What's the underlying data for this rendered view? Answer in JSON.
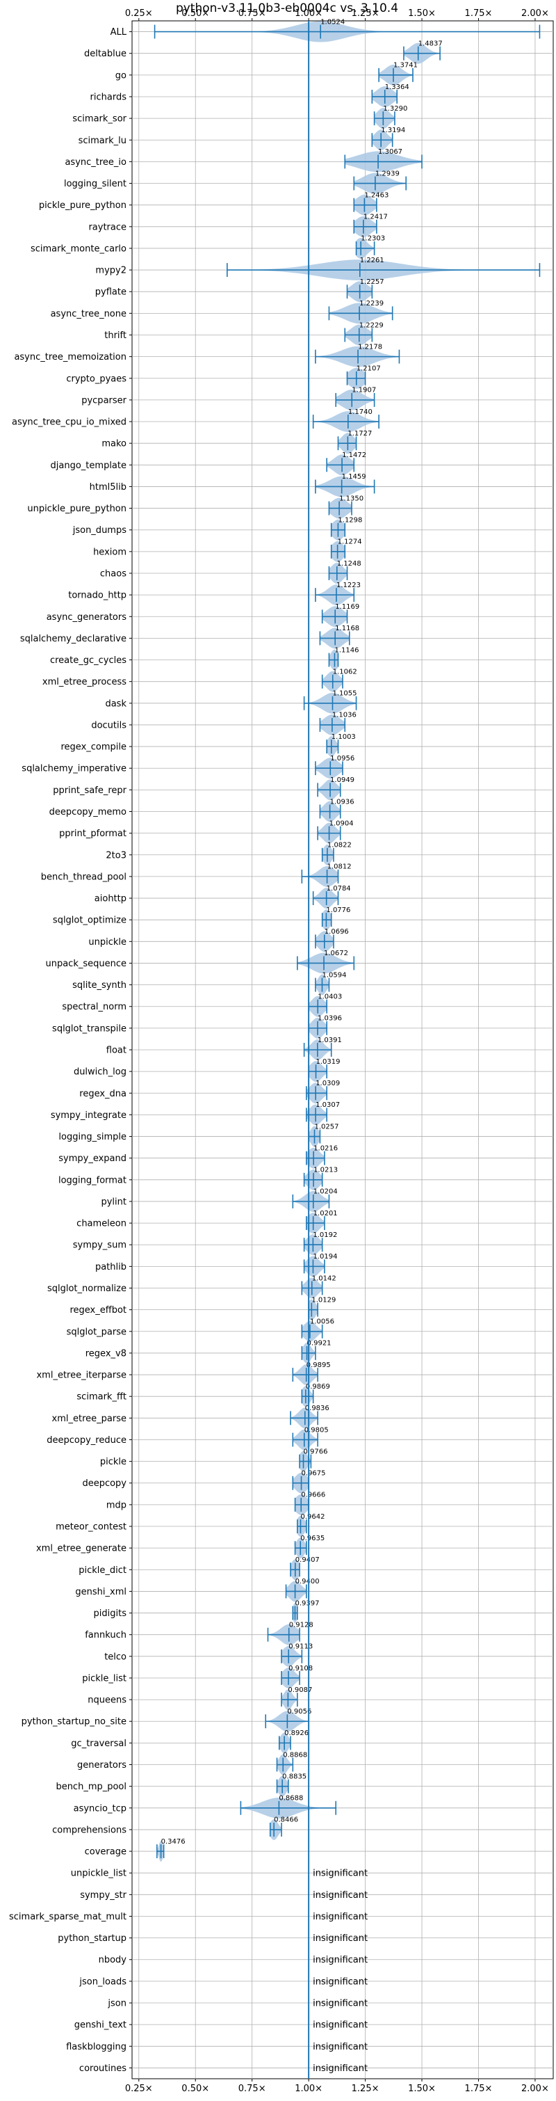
{
  "chart_data": {
    "type": "violin",
    "title": "python-v3.11.0b3-eb0004c vs. 3.10.4",
    "xlabel": "",
    "ylabel": "",
    "xlim": [
      0.22,
      2.08
    ],
    "xticks": [
      0.25,
      0.5,
      0.75,
      1.0,
      1.25,
      1.5,
      1.75,
      2.0
    ],
    "xtick_labels": [
      "0.25×",
      "0.50×",
      "0.75×",
      "1.00×",
      "1.25×",
      "1.50×",
      "1.75×",
      "2.00×"
    ],
    "reference_line": 1.0,
    "grid": true,
    "colors": {
      "violin": "#aac8e4",
      "whisker": "#1f77b4",
      "reference": "#1f77b4",
      "grid": "#b0b0b0"
    },
    "insignificant_text": "insignificant",
    "benchmarks": [
      {
        "name": "ALL",
        "label": "1.0524",
        "median": 1.0524,
        "min": 0.32,
        "max": 2.02,
        "spread": 0.12
      },
      {
        "name": "deltablue",
        "label": "1.4837",
        "median": 1.4837,
        "min": 1.42,
        "max": 1.58,
        "spread": 0.04
      },
      {
        "name": "go",
        "label": "1.3741",
        "median": 1.3741,
        "min": 1.31,
        "max": 1.46,
        "spread": 0.04
      },
      {
        "name": "richards",
        "label": "1.3364",
        "median": 1.3364,
        "min": 1.28,
        "max": 1.39,
        "spread": 0.04
      },
      {
        "name": "scimark_sor",
        "label": "1.3290",
        "median": 1.329,
        "min": 1.29,
        "max": 1.38,
        "spread": 0.03
      },
      {
        "name": "scimark_lu",
        "label": "1.3194",
        "median": 1.3194,
        "min": 1.28,
        "max": 1.37,
        "spread": 0.03
      },
      {
        "name": "async_tree_io",
        "label": "1.3067",
        "median": 1.3067,
        "min": 1.16,
        "max": 1.5,
        "spread": 0.1
      },
      {
        "name": "logging_silent",
        "label": "1.2939",
        "median": 1.2939,
        "min": 1.2,
        "max": 1.43,
        "spread": 0.06
      },
      {
        "name": "pickle_pure_python",
        "label": "1.2463",
        "median": 1.2463,
        "min": 1.2,
        "max": 1.3,
        "spread": 0.04
      },
      {
        "name": "raytrace",
        "label": "1.2417",
        "median": 1.2417,
        "min": 1.2,
        "max": 1.3,
        "spread": 0.04
      },
      {
        "name": "scimark_monte_carlo",
        "label": "1.2303",
        "median": 1.2303,
        "min": 1.21,
        "max": 1.29,
        "spread": 0.03
      },
      {
        "name": "mypy2",
        "label": "1.2261",
        "median": 1.2261,
        "min": 0.64,
        "max": 2.02,
        "spread": 0.2
      },
      {
        "name": "pyflate",
        "label": "1.2257",
        "median": 1.2257,
        "min": 1.17,
        "max": 1.28,
        "spread": 0.04
      },
      {
        "name": "async_tree_none",
        "label": "1.2239",
        "median": 1.2239,
        "min": 1.09,
        "max": 1.37,
        "spread": 0.07
      },
      {
        "name": "thrift",
        "label": "1.2229",
        "median": 1.2229,
        "min": 1.16,
        "max": 1.28,
        "spread": 0.04
      },
      {
        "name": "async_tree_memoization",
        "label": "1.2178",
        "median": 1.2178,
        "min": 1.03,
        "max": 1.4,
        "spread": 0.08
      },
      {
        "name": "crypto_pyaes",
        "label": "1.2107",
        "median": 1.2107,
        "min": 1.17,
        "max": 1.25,
        "spread": 0.04
      },
      {
        "name": "pycparser",
        "label": "1.1907",
        "median": 1.1907,
        "min": 1.12,
        "max": 1.29,
        "spread": 0.05
      },
      {
        "name": "async_tree_cpu_io_mixed",
        "label": "1.1740",
        "median": 1.174,
        "min": 1.02,
        "max": 1.31,
        "spread": 0.06
      },
      {
        "name": "mako",
        "label": "1.1727",
        "median": 1.1727,
        "min": 1.13,
        "max": 1.21,
        "spread": 0.03
      },
      {
        "name": "django_template",
        "label": "1.1472",
        "median": 1.1472,
        "min": 1.08,
        "max": 1.2,
        "spread": 0.04
      },
      {
        "name": "html5lib",
        "label": "1.1459",
        "median": 1.1459,
        "min": 1.03,
        "max": 1.29,
        "spread": 0.06
      },
      {
        "name": "unpickle_pure_python",
        "label": "1.1350",
        "median": 1.135,
        "min": 1.09,
        "max": 1.19,
        "spread": 0.04
      },
      {
        "name": "json_dumps",
        "label": "1.1298",
        "median": 1.1298,
        "min": 1.1,
        "max": 1.16,
        "spread": 0.03
      },
      {
        "name": "hexiom",
        "label": "1.1274",
        "median": 1.1274,
        "min": 1.1,
        "max": 1.16,
        "spread": 0.03
      },
      {
        "name": "chaos",
        "label": "1.1248",
        "median": 1.1248,
        "min": 1.09,
        "max": 1.17,
        "spread": 0.03
      },
      {
        "name": "tornado_http",
        "label": "1.1223",
        "median": 1.1223,
        "min": 1.03,
        "max": 1.2,
        "spread": 0.04
      },
      {
        "name": "async_generators",
        "label": "1.1169",
        "median": 1.1169,
        "min": 1.06,
        "max": 1.17,
        "spread": 0.04
      },
      {
        "name": "sqlalchemy_declarative",
        "label": "1.1168",
        "median": 1.1168,
        "min": 1.05,
        "max": 1.18,
        "spread": 0.04
      },
      {
        "name": "create_gc_cycles",
        "label": "1.1146",
        "median": 1.1146,
        "min": 1.09,
        "max": 1.13,
        "spread": 0.02
      },
      {
        "name": "xml_etree_process",
        "label": "1.1062",
        "median": 1.1062,
        "min": 1.06,
        "max": 1.15,
        "spread": 0.03
      },
      {
        "name": "dask",
        "label": "1.1055",
        "median": 1.1055,
        "min": 0.98,
        "max": 1.21,
        "spread": 0.05
      },
      {
        "name": "docutils",
        "label": "1.1036",
        "median": 1.1036,
        "min": 1.05,
        "max": 1.16,
        "spread": 0.04
      },
      {
        "name": "regex_compile",
        "label": "1.1003",
        "median": 1.1003,
        "min": 1.08,
        "max": 1.13,
        "spread": 0.02
      },
      {
        "name": "sqlalchemy_imperative",
        "label": "1.0956",
        "median": 1.0956,
        "min": 1.03,
        "max": 1.15,
        "spread": 0.04
      },
      {
        "name": "pprint_safe_repr",
        "label": "1.0949",
        "median": 1.0949,
        "min": 1.04,
        "max": 1.14,
        "spread": 0.03
      },
      {
        "name": "deepcopy_memo",
        "label": "1.0936",
        "median": 1.0936,
        "min": 1.05,
        "max": 1.14,
        "spread": 0.03
      },
      {
        "name": "pprint_pformat",
        "label": "1.0904",
        "median": 1.0904,
        "min": 1.04,
        "max": 1.14,
        "spread": 0.03
      },
      {
        "name": "2to3",
        "label": "1.0822",
        "median": 1.0822,
        "min": 1.06,
        "max": 1.11,
        "spread": 0.02
      },
      {
        "name": "bench_thread_pool",
        "label": "1.0812",
        "median": 1.0812,
        "min": 0.97,
        "max": 1.13,
        "spread": 0.04
      },
      {
        "name": "aiohttp",
        "label": "1.0784",
        "median": 1.0784,
        "min": 1.02,
        "max": 1.13,
        "spread": 0.03
      },
      {
        "name": "sqlglot_optimize",
        "label": "1.0776",
        "median": 1.0776,
        "min": 1.06,
        "max": 1.1,
        "spread": 0.02
      },
      {
        "name": "unpickle",
        "label": "1.0696",
        "median": 1.0696,
        "min": 1.03,
        "max": 1.11,
        "spread": 0.03
      },
      {
        "name": "unpack_sequence",
        "label": "1.0672",
        "median": 1.0672,
        "min": 0.95,
        "max": 1.2,
        "spread": 0.06
      },
      {
        "name": "sqlite_synth",
        "label": "1.0594",
        "median": 1.0594,
        "min": 1.03,
        "max": 1.09,
        "spread": 0.02
      },
      {
        "name": "spectral_norm",
        "label": "1.0403",
        "median": 1.0403,
        "min": 1.0,
        "max": 1.08,
        "spread": 0.03
      },
      {
        "name": "sqlglot_transpile",
        "label": "1.0396",
        "median": 1.0396,
        "min": 1.0,
        "max": 1.08,
        "spread": 0.03
      },
      {
        "name": "float",
        "label": "1.0391",
        "median": 1.0391,
        "min": 0.98,
        "max": 1.1,
        "spread": 0.03
      },
      {
        "name": "dulwich_log",
        "label": "1.0319",
        "median": 1.0319,
        "min": 1.0,
        "max": 1.08,
        "spread": 0.03
      },
      {
        "name": "regex_dna",
        "label": "1.0309",
        "median": 1.0309,
        "min": 0.99,
        "max": 1.08,
        "spread": 0.03
      },
      {
        "name": "sympy_integrate",
        "label": "1.0307",
        "median": 1.0307,
        "min": 0.99,
        "max": 1.08,
        "spread": 0.03
      },
      {
        "name": "logging_simple",
        "label": "1.0257",
        "median": 1.0257,
        "min": 1.0,
        "max": 1.05,
        "spread": 0.02
      },
      {
        "name": "sympy_expand",
        "label": "1.0216",
        "median": 1.0216,
        "min": 0.99,
        "max": 1.07,
        "spread": 0.03
      },
      {
        "name": "logging_format",
        "label": "1.0213",
        "median": 1.0213,
        "min": 0.98,
        "max": 1.06,
        "spread": 0.03
      },
      {
        "name": "pylint",
        "label": "1.0204",
        "median": 1.0204,
        "min": 0.93,
        "max": 1.09,
        "spread": 0.04
      },
      {
        "name": "chameleon",
        "label": "1.0201",
        "median": 1.0201,
        "min": 0.99,
        "max": 1.07,
        "spread": 0.03
      },
      {
        "name": "sympy_sum",
        "label": "1.0192",
        "median": 1.0192,
        "min": 0.98,
        "max": 1.06,
        "spread": 0.03
      },
      {
        "name": "pathlib",
        "label": "1.0194",
        "median": 1.0194,
        "min": 0.98,
        "max": 1.07,
        "spread": 0.03
      },
      {
        "name": "sqlglot_normalize",
        "label": "1.0142",
        "median": 1.0142,
        "min": 0.97,
        "max": 1.06,
        "spread": 0.03
      },
      {
        "name": "regex_effbot",
        "label": "1.0129",
        "median": 1.0129,
        "min": 1.0,
        "max": 1.04,
        "spread": 0.02
      },
      {
        "name": "sqlglot_parse",
        "label": "1.0056",
        "median": 1.0056,
        "min": 0.97,
        "max": 1.06,
        "spread": 0.03
      },
      {
        "name": "regex_v8",
        "label": "0.9921",
        "median": 0.9921,
        "min": 0.97,
        "max": 1.03,
        "spread": 0.02
      },
      {
        "name": "xml_etree_iterparse",
        "label": "0.9895",
        "median": 0.9895,
        "min": 0.93,
        "max": 1.04,
        "spread": 0.03
      },
      {
        "name": "scimark_fft",
        "label": "0.9869",
        "median": 0.9869,
        "min": 0.97,
        "max": 1.02,
        "spread": 0.02
      },
      {
        "name": "xml_etree_parse",
        "label": "0.9836",
        "median": 0.9836,
        "min": 0.92,
        "max": 1.04,
        "spread": 0.03
      },
      {
        "name": "deepcopy_reduce",
        "label": "0.9805",
        "median": 0.9805,
        "min": 0.93,
        "max": 1.04,
        "spread": 0.03
      },
      {
        "name": "pickle",
        "label": "0.9766",
        "median": 0.9766,
        "min": 0.96,
        "max": 1.01,
        "spread": 0.02
      },
      {
        "name": "deepcopy",
        "label": "0.9675",
        "median": 0.9675,
        "min": 0.93,
        "max": 1.0,
        "spread": 0.03
      },
      {
        "name": "mdp",
        "label": "0.9666",
        "median": 0.9666,
        "min": 0.94,
        "max": 1.0,
        "spread": 0.03
      },
      {
        "name": "meteor_contest",
        "label": "0.9642",
        "median": 0.9642,
        "min": 0.95,
        "max": 0.99,
        "spread": 0.02
      },
      {
        "name": "xml_etree_generate",
        "label": "0.9635",
        "median": 0.9635,
        "min": 0.94,
        "max": 0.99,
        "spread": 0.02
      },
      {
        "name": "pickle_dict",
        "label": "0.9407",
        "median": 0.9407,
        "min": 0.92,
        "max": 0.96,
        "spread": 0.02
      },
      {
        "name": "genshi_xml",
        "label": "0.9400",
        "median": 0.94,
        "min": 0.9,
        "max": 0.99,
        "spread": 0.03
      },
      {
        "name": "pidigits",
        "label": "0.9397",
        "median": 0.9397,
        "min": 0.93,
        "max": 0.95,
        "spread": 0.01
      },
      {
        "name": "fannkuch",
        "label": "0.9128",
        "median": 0.9128,
        "min": 0.82,
        "max": 0.96,
        "spread": 0.04
      },
      {
        "name": "telco",
        "label": "0.9113",
        "median": 0.9113,
        "min": 0.88,
        "max": 0.97,
        "spread": 0.03
      },
      {
        "name": "pickle_list",
        "label": "0.9108",
        "median": 0.9108,
        "min": 0.88,
        "max": 0.96,
        "spread": 0.03
      },
      {
        "name": "nqueens",
        "label": "0.9087",
        "median": 0.9087,
        "min": 0.88,
        "max": 0.95,
        "spread": 0.02
      },
      {
        "name": "python_startup_no_site",
        "label": "0.9056",
        "median": 0.9056,
        "min": 0.81,
        "max": 1.0,
        "spread": 0.04
      },
      {
        "name": "gc_traversal",
        "label": "0.8926",
        "median": 0.8926,
        "min": 0.87,
        "max": 0.92,
        "spread": 0.02
      },
      {
        "name": "generators",
        "label": "0.8868",
        "median": 0.8868,
        "min": 0.86,
        "max": 0.93,
        "spread": 0.02
      },
      {
        "name": "bench_mp_pool",
        "label": "0.8835",
        "median": 0.8835,
        "min": 0.86,
        "max": 0.91,
        "spread": 0.02
      },
      {
        "name": "asyncio_tcp",
        "label": "0.8688",
        "median": 0.8688,
        "min": 0.7,
        "max": 1.12,
        "spread": 0.08
      },
      {
        "name": "comprehensions",
        "label": "0.8466",
        "median": 0.8466,
        "min": 0.83,
        "max": 0.88,
        "spread": 0.02
      },
      {
        "name": "coverage",
        "label": "0.3476",
        "median": 0.3476,
        "min": 0.33,
        "max": 0.36,
        "spread": 0.01
      },
      {
        "name": "unpickle_list",
        "insignificant": true
      },
      {
        "name": "sympy_str",
        "insignificant": true
      },
      {
        "name": "scimark_sparse_mat_mult",
        "insignificant": true
      },
      {
        "name": "python_startup",
        "insignificant": true
      },
      {
        "name": "nbody",
        "insignificant": true
      },
      {
        "name": "json_loads",
        "insignificant": true
      },
      {
        "name": "json",
        "insignificant": true
      },
      {
        "name": "genshi_text",
        "insignificant": true
      },
      {
        "name": "flaskblogging",
        "insignificant": true
      },
      {
        "name": "coroutines",
        "insignificant": true
      }
    ]
  }
}
